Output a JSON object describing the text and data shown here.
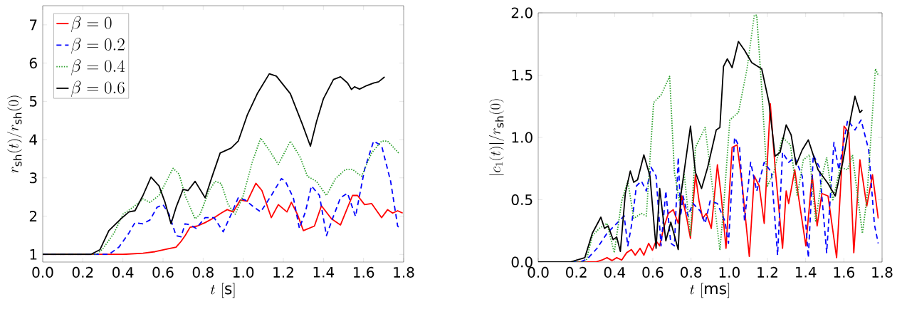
{
  "chart_data": [
    {
      "type": "line",
      "xlabel": "t\\ [\\mathrm{s}]",
      "ylabel": "r_{\\mathrm{sh}}(t)/r_{\\mathrm{sh}}(0)",
      "legend": "top left",
      "xlim": [
        0,
        1.8
      ],
      "ylim": [
        0.8,
        7.5
      ],
      "xticks": [
        {
          "value": 0,
          "label": "0.0"
        },
        {
          "value": 0.2,
          "label": "0.2"
        },
        {
          "value": 0.4,
          "label": "0.4"
        },
        {
          "value": 0.6,
          "label": "0.6"
        },
        {
          "value": 0.8,
          "label": "0.8"
        },
        {
          "value": 1.0,
          "label": "1.0"
        },
        {
          "value": 1.2,
          "label": "1.2"
        },
        {
          "value": 1.4,
          "label": "1.4"
        },
        {
          "value": 1.6,
          "label": "1.6"
        },
        {
          "value": 1.8,
          "label": "1.8"
        }
      ],
      "yticks": [
        1,
        2,
        3,
        4,
        5,
        6,
        7
      ],
      "series": [
        {
          "name": "\\beta=0",
          "color": "#ff0000",
          "line_style": "solid",
          "x": [
            0,
            0.4,
            0.5,
            0.56,
            0.63,
            0.665,
            0.69,
            0.71,
            0.735,
            0.77,
            0.81,
            0.855,
            0.89,
            0.92,
            0.95,
            0.985,
            1.02,
            1.063,
            1.093,
            1.14,
            1.175,
            1.218,
            1.24,
            1.27,
            1.3,
            1.355,
            1.39,
            1.44,
            1.485,
            1.545,
            1.57,
            1.605,
            1.64,
            1.69,
            1.72,
            1.745,
            1.77,
            1.795
          ],
          "values": [
            1.0,
            1.0,
            1.03,
            1.07,
            1.15,
            1.19,
            1.34,
            1.49,
            1.71,
            1.74,
            1.83,
            1.96,
            2.08,
            2.17,
            2.11,
            2.42,
            2.39,
            2.86,
            2.67,
            1.96,
            2.3,
            2.11,
            2.36,
            2.05,
            1.62,
            1.74,
            2.27,
            1.93,
            1.77,
            2.54,
            2.54,
            2.3,
            2.33,
            1.96,
            2.17,
            2.08,
            2.14,
            2.08
          ]
        },
        {
          "name": "\\beta=0.2",
          "color": "#0000ff",
          "line_style": "dashed",
          "x": [
            0,
            0.33,
            0.38,
            0.43,
            0.46,
            0.5,
            0.535,
            0.57,
            0.6,
            0.63,
            0.665,
            0.69,
            0.71,
            0.735,
            0.765,
            0.81,
            0.855,
            0.9,
            0.94,
            0.975,
            1.01,
            1.045,
            1.087,
            1.14,
            1.19,
            1.21,
            1.25,
            1.28,
            1.31,
            1.34,
            1.38,
            1.415,
            1.445,
            1.485,
            1.52,
            1.56,
            1.605,
            1.65,
            1.69,
            1.735,
            1.77,
            1.78
          ],
          "values": [
            1.0,
            1.0,
            1.19,
            1.56,
            1.83,
            1.8,
            1.9,
            2.23,
            2.3,
            2.05,
            1.49,
            1.46,
            1.8,
            1.77,
            1.68,
            1.96,
            1.96,
            1.59,
            2.05,
            2.48,
            2.42,
            2.27,
            2.11,
            2.54,
            2.98,
            2.91,
            2.48,
            1.68,
            2.11,
            2.79,
            2.54,
            1.49,
            1.93,
            2.48,
            2.6,
            1.99,
            3.22,
            3.96,
            3.84,
            2.91,
            1.74,
            1.68
          ]
        },
        {
          "name": "\\beta=0.4",
          "color": "#2ca02c",
          "line_style": "dotted",
          "x": [
            0,
            0.27,
            0.3,
            0.356,
            0.4,
            0.45,
            0.5,
            0.535,
            0.58,
            0.65,
            0.68,
            0.71,
            0.76,
            0.785,
            0.83,
            0.86,
            0.89,
            0.925,
            0.96,
            1.0,
            1.045,
            1.087,
            1.13,
            1.175,
            1.235,
            1.285,
            1.32,
            1.365,
            1.415,
            1.46,
            1.51,
            1.545,
            1.59,
            1.64,
            1.69,
            1.72,
            1.775
          ],
          "values": [
            1.0,
            1.0,
            1.15,
            1.56,
            2.05,
            2.23,
            2.45,
            2.36,
            2.54,
            3.25,
            3.1,
            2.54,
            1.93,
            2.05,
            2.67,
            2.91,
            2.85,
            2.3,
            2.05,
            2.54,
            3.41,
            4.04,
            3.72,
            3.35,
            3.96,
            3.53,
            3.04,
            2.91,
            2.54,
            2.98,
            3.22,
            3.22,
            3.04,
            3.65,
            3.96,
            3.96,
            3.65
          ]
        },
        {
          "name": "\\beta=0.6",
          "color": "#000000",
          "line_style": "solid",
          "x": [
            0,
            0.24,
            0.285,
            0.33,
            0.39,
            0.43,
            0.46,
            0.5,
            0.54,
            0.58,
            0.61,
            0.64,
            0.665,
            0.7,
            0.725,
            0.76,
            0.81,
            0.845,
            0.885,
            0.94,
            0.975,
            1.02,
            1.07,
            1.13,
            1.165,
            1.235,
            1.295,
            1.335,
            1.365,
            1.4,
            1.45,
            1.485,
            1.52,
            1.54,
            1.555,
            1.58,
            1.615,
            1.65,
            1.675,
            1.705
          ],
          "values": [
            1.0,
            1.0,
            1.12,
            1.62,
            1.93,
            2.11,
            2.14,
            2.54,
            3.02,
            2.79,
            2.36,
            1.8,
            2.23,
            2.7,
            2.67,
            2.91,
            2.48,
            3.04,
            3.65,
            3.78,
            3.96,
            4.64,
            5.2,
            5.72,
            5.66,
            5.2,
            4.4,
            3.83,
            4.46,
            5.07,
            5.57,
            5.64,
            5.48,
            5.31,
            5.38,
            5.32,
            5.41,
            5.48,
            5.51,
            5.64
          ]
        }
      ]
    },
    {
      "type": "line",
      "xlabel": "t\\ [\\mathrm{ms}]",
      "ylabel": "|c_1(t)|/r_{\\mathrm{sh}}(0)",
      "xlim": [
        0,
        1.8
      ],
      "ylim": [
        0,
        2
      ],
      "xticks": [
        {
          "value": 0,
          "label": "0.0"
        },
        {
          "value": 0.2,
          "label": "0.2"
        },
        {
          "value": 0.4,
          "label": "0.4"
        },
        {
          "value": 0.6,
          "label": "0.6"
        },
        {
          "value": 0.8,
          "label": "0.8"
        },
        {
          "value": 1.0,
          "label": "1.0"
        },
        {
          "value": 1.2,
          "label": "1.2"
        },
        {
          "value": 1.4,
          "label": "1.4"
        },
        {
          "value": 1.6,
          "label": "1.6"
        },
        {
          "value": 1.8,
          "label": "1.8"
        }
      ],
      "yticks": [
        {
          "value": 0,
          "label": "0.0"
        },
        {
          "value": 0.5,
          "label": "0.5"
        },
        {
          "value": 1.0,
          "label": "1.0"
        },
        {
          "value": 1.5,
          "label": "1.5"
        },
        {
          "value": 2.0,
          "label": "2.0"
        }
      ],
      "series": [
        {
          "color": "#ff0000",
          "line_style": "solid",
          "x": [
            0,
            0.3,
            0.334,
            0.36,
            0.386,
            0.411,
            0.437,
            0.463,
            0.488,
            0.508,
            0.533,
            0.553,
            0.578,
            0.598,
            0.617,
            0.636,
            0.656,
            0.681,
            0.707,
            0.733,
            0.752,
            0.778,
            0.797,
            0.823,
            0.842,
            0.861,
            0.88,
            0.906,
            0.938,
            0.958,
            0.983,
            1.015,
            1.041,
            1.067,
            1.105,
            1.131,
            1.157,
            1.183,
            1.215,
            1.24,
            1.279,
            1.298,
            1.311,
            1.343,
            1.362,
            1.401,
            1.434,
            1.46,
            1.485,
            1.517,
            1.562,
            1.601,
            1.626,
            1.652,
            1.684,
            1.72,
            1.75,
            1.78
          ],
          "values": [
            0,
            0,
            0.016,
            0.035,
            0.012,
            0.035,
            0.016,
            0.075,
            0.1,
            0.055,
            0.11,
            0.055,
            0.15,
            0.094,
            0.17,
            0.13,
            0.27,
            0.39,
            0.42,
            0.31,
            0.53,
            0.35,
            0.19,
            0.7,
            0.49,
            0.35,
            0.39,
            0.27,
            0.78,
            0.53,
            0.11,
            0.92,
            0.94,
            0.63,
            0.045,
            0.69,
            0.61,
            0.31,
            1.27,
            0.76,
            0.11,
            0.57,
            0.47,
            0.74,
            0.53,
            0.13,
            0.7,
            0.29,
            0.55,
            0.53,
            0.035,
            1.09,
            1.04,
            0.075,
            0.82,
            0.45,
            0.7,
            0.35
          ]
        },
        {
          "color": "#0000ff",
          "line_style": "dashed",
          "x": [
            0,
            0.22,
            0.257,
            0.308,
            0.36,
            0.398,
            0.45,
            0.469,
            0.488,
            0.514,
            0.54,
            0.566,
            0.591,
            0.617,
            0.643,
            0.668,
            0.694,
            0.713,
            0.733,
            0.746,
            0.758,
            0.784,
            0.81,
            0.848,
            0.874,
            0.9,
            0.938,
            0.977,
            0.996,
            1.028,
            1.054,
            1.08,
            1.112,
            1.144,
            1.183,
            1.221,
            1.253,
            1.279,
            1.311,
            1.343,
            1.382,
            1.414,
            1.44,
            1.472,
            1.51,
            1.548,
            1.574,
            1.62,
            1.658,
            1.69,
            1.73,
            1.76,
            1.78
          ],
          "values": [
            0,
            0,
            0.025,
            0.11,
            0.23,
            0.29,
            0.37,
            0.13,
            0.29,
            0.61,
            0.65,
            0.57,
            0.76,
            0.69,
            0.13,
            0.57,
            0.15,
            0.13,
            0.84,
            0.37,
            0.53,
            0.37,
            0.47,
            0.41,
            0.31,
            0.49,
            0.47,
            0.33,
            0.15,
            1.0,
            0.92,
            0.33,
            0.8,
            0.57,
            0.8,
            0.72,
            0.055,
            0.88,
            0.8,
            0.84,
            0.69,
            0.035,
            0.86,
            0.76,
            0.075,
            0.96,
            0.74,
            1.14,
            1.06,
            1.14,
            0.9,
            0.3,
            0.15
          ]
        },
        {
          "color": "#2ca02c",
          "line_style": "dotted",
          "x": [
            0,
            0.25,
            0.283,
            0.32,
            0.36,
            0.398,
            0.437,
            0.469,
            0.5,
            0.54,
            0.566,
            0.604,
            0.643,
            0.688,
            0.713,
            0.739,
            0.765,
            0.797,
            0.823,
            0.874,
            0.913,
            0.951,
            0.97,
            1.003,
            1.048,
            1.093,
            1.131,
            1.144,
            1.17,
            1.2,
            1.233,
            1.279,
            1.32,
            1.356,
            1.388,
            1.42,
            1.452,
            1.491,
            1.51,
            1.542,
            1.581,
            1.62,
            1.645,
            1.697,
            1.72,
            1.75,
            1.765,
            1.78
          ],
          "values": [
            0,
            0,
            0.21,
            0.27,
            0.31,
            0.075,
            0.49,
            0.65,
            0.35,
            0.39,
            0.37,
            1.28,
            1.34,
            1.49,
            0.72,
            0.49,
            0.7,
            0.21,
            0.92,
            1.08,
            0.59,
            0.095,
            0.43,
            1.14,
            1.2,
            1.55,
            1.98,
            1.98,
            1.39,
            0.61,
            0.72,
            1.0,
            0.94,
            0.53,
            0.82,
            0.86,
            0.33,
            0.72,
            0.84,
            0.49,
            0.76,
            0.74,
            0.86,
            0.23,
            0.5,
            1.2,
            1.55,
            1.5
          ]
        },
        {
          "color": "#000000",
          "line_style": "solid",
          "x": [
            0,
            0.167,
            0.244,
            0.283,
            0.328,
            0.347,
            0.366,
            0.392,
            0.411,
            0.43,
            0.456,
            0.482,
            0.5,
            0.52,
            0.553,
            0.585,
            0.617,
            0.636,
            0.668,
            0.694,
            0.733,
            0.746,
            0.797,
            0.823,
            0.855,
            0.887,
            0.932,
            0.951,
            0.97,
            0.99,
            1.015,
            1.048,
            1.08,
            1.118,
            1.17,
            1.208,
            1.24,
            1.266,
            1.298,
            1.324,
            1.35,
            1.382,
            1.414,
            1.465,
            1.517,
            1.555,
            1.594,
            1.626,
            1.658,
            1.684,
            1.697
          ],
          "values": [
            0,
            0,
            0.035,
            0.23,
            0.36,
            0.27,
            0.29,
            0.18,
            0.2,
            0.085,
            0.55,
            0.73,
            0.64,
            0.66,
            0.86,
            0.69,
            0.11,
            0.59,
            0.17,
            0.32,
            0.1,
            0.53,
            1.09,
            0.72,
            0.59,
            0.76,
            1.06,
            1.08,
            1.57,
            1.63,
            1.56,
            1.77,
            1.7,
            1.6,
            1.55,
            1.28,
            0.85,
            0.88,
            1.1,
            1.02,
            0.78,
            0.9,
            0.98,
            0.74,
            0.63,
            0.53,
            0.8,
            1.08,
            1.33,
            1.2,
            1.22
          ]
        }
      ]
    }
  ]
}
